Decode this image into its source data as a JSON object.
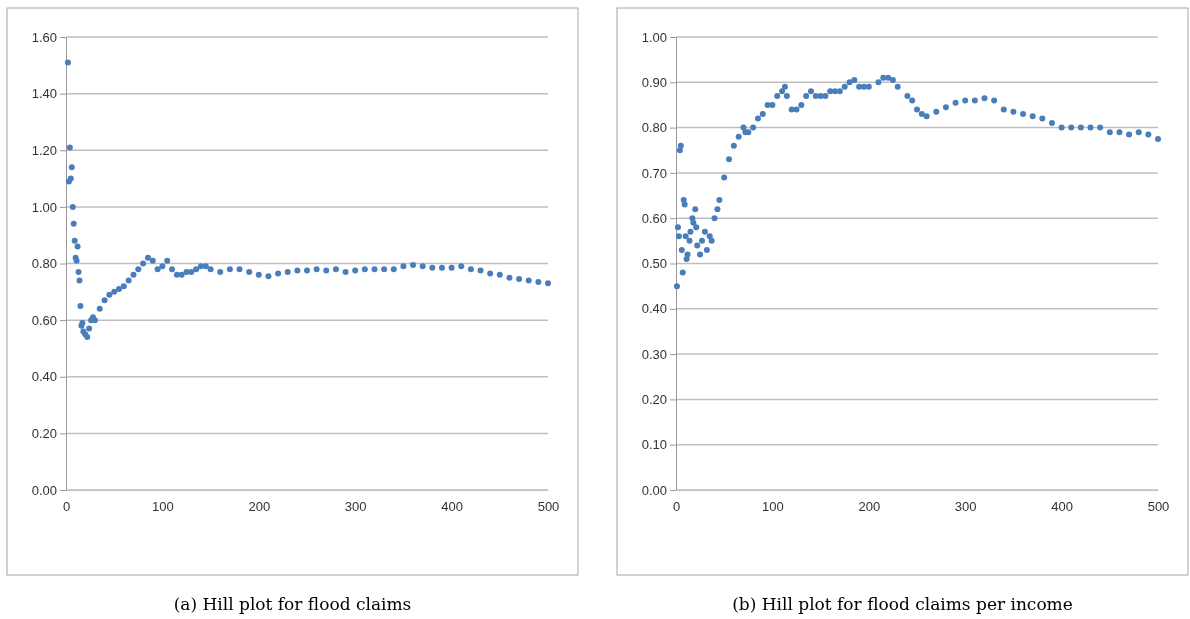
{
  "chart_data": [
    {
      "type": "scatter",
      "title": "(a) Hill plot for flood claims",
      "marker": "circle",
      "grid": "y",
      "xlim": [
        0,
        500
      ],
      "xticks": [
        0,
        100,
        200,
        300,
        400,
        500
      ],
      "ylim": [
        0,
        1.6
      ],
      "yticks": [
        {
          "value": 0,
          "label": "0.00"
        },
        {
          "value": 0.2,
          "label": "0.20"
        },
        {
          "value": 0.4,
          "label": "0.40"
        },
        {
          "value": 0.6,
          "label": "0.60"
        },
        {
          "value": 0.8,
          "label": "0.80"
        },
        {
          "value": 1.0,
          "label": "1.00"
        },
        {
          "value": 1.2,
          "label": "1.20"
        },
        {
          "value": 1.4,
          "label": "1.40"
        },
        {
          "value": 1.6,
          "label": "1.60"
        }
      ],
      "x": [
        2,
        3,
        4,
        5,
        6,
        7,
        8,
        9,
        10,
        11,
        12,
        13,
        14,
        15,
        16,
        17,
        18,
        20,
        22,
        24,
        26,
        28,
        30,
        35,
        40,
        45,
        50,
        55,
        60,
        65,
        70,
        75,
        80,
        85,
        90,
        95,
        100,
        105,
        110,
        115,
        120,
        125,
        130,
        135,
        140,
        145,
        150,
        160,
        170,
        180,
        190,
        200,
        210,
        220,
        230,
        240,
        250,
        260,
        270,
        280,
        290,
        300,
        310,
        320,
        330,
        340,
        350,
        360,
        370,
        380,
        390,
        400,
        410,
        420,
        430,
        440,
        450,
        460,
        470,
        480,
        490,
        500
      ],
      "series": [
        {
          "color": "#4a7ebb",
          "values": [
            1.51,
            1.09,
            1.21,
            1.1,
            1.14,
            1.0,
            0.94,
            0.88,
            0.82,
            0.81,
            0.86,
            0.77,
            0.74,
            0.65,
            0.58,
            0.59,
            0.56,
            0.55,
            0.54,
            0.57,
            0.6,
            0.61,
            0.6,
            0.64,
            0.67,
            0.69,
            0.7,
            0.71,
            0.72,
            0.74,
            0.76,
            0.78,
            0.8,
            0.82,
            0.81,
            0.78,
            0.79,
            0.81,
            0.78,
            0.76,
            0.76,
            0.77,
            0.77,
            0.78,
            0.79,
            0.79,
            0.78,
            0.77,
            0.78,
            0.78,
            0.77,
            0.76,
            0.755,
            0.765,
            0.77,
            0.775,
            0.775,
            0.78,
            0.775,
            0.78,
            0.77,
            0.775,
            0.78,
            0.78,
            0.78,
            0.78,
            0.79,
            0.795,
            0.79,
            0.785,
            0.785,
            0.785,
            0.79,
            0.78,
            0.775,
            0.765,
            0.76,
            0.75,
            0.745,
            0.74,
            0.735,
            0.73
          ]
        }
      ]
    },
    {
      "type": "scatter",
      "title": "(b) Hill plot for flood claims per income",
      "marker": "circle",
      "grid": "y",
      "xlim": [
        0,
        500
      ],
      "xticks": [
        0,
        100,
        200,
        300,
        400,
        500
      ],
      "ylim": [
        0,
        1.0
      ],
      "yticks": [
        {
          "value": 0,
          "label": "0.00"
        },
        {
          "value": 0.1,
          "label": "0.10"
        },
        {
          "value": 0.2,
          "label": "0.20"
        },
        {
          "value": 0.3,
          "label": "0.30"
        },
        {
          "value": 0.4,
          "label": "0.40"
        },
        {
          "value": 0.5,
          "label": "0.50"
        },
        {
          "value": 0.6,
          "label": "0.60"
        },
        {
          "value": 0.7,
          "label": "0.70"
        },
        {
          "value": 0.8,
          "label": "0.80"
        },
        {
          "value": 0.9,
          "label": "0.90"
        },
        {
          "value": 1.0,
          "label": "1.00"
        }
      ],
      "x": [
        1,
        2,
        3,
        4,
        5,
        6,
        7,
        8,
        9,
        10,
        11,
        12,
        14,
        15,
        17,
        18,
        20,
        21,
        22,
        25,
        27,
        30,
        32,
        35,
        37,
        40,
        43,
        45,
        50,
        55,
        60,
        65,
        70,
        72,
        75,
        80,
        85,
        90,
        95,
        100,
        105,
        110,
        113,
        115,
        120,
        125,
        130,
        135,
        140,
        145,
        150,
        155,
        160,
        165,
        170,
        175,
        180,
        185,
        190,
        195,
        200,
        210,
        215,
        220,
        225,
        230,
        240,
        245,
        250,
        255,
        260,
        270,
        280,
        290,
        300,
        310,
        320,
        330,
        340,
        350,
        360,
        370,
        380,
        390,
        400,
        410,
        420,
        430,
        440,
        450,
        460,
        470,
        480,
        490,
        500
      ],
      "series": [
        {
          "color": "#4a7ebb",
          "values": [
            0.45,
            0.58,
            0.56,
            0.75,
            0.76,
            0.53,
            0.48,
            0.64,
            0.63,
            0.56,
            0.51,
            0.52,
            0.55,
            0.57,
            0.6,
            0.59,
            0.62,
            0.58,
            0.54,
            0.52,
            0.55,
            0.57,
            0.53,
            0.56,
            0.55,
            0.6,
            0.62,
            0.64,
            0.69,
            0.73,
            0.76,
            0.78,
            0.8,
            0.79,
            0.79,
            0.8,
            0.82,
            0.83,
            0.85,
            0.85,
            0.87,
            0.88,
            0.89,
            0.87,
            0.84,
            0.84,
            0.85,
            0.87,
            0.88,
            0.87,
            0.87,
            0.87,
            0.88,
            0.88,
            0.88,
            0.89,
            0.9,
            0.905,
            0.89,
            0.89,
            0.89,
            0.9,
            0.91,
            0.91,
            0.905,
            0.89,
            0.87,
            0.86,
            0.84,
            0.83,
            0.825,
            0.835,
            0.845,
            0.855,
            0.86,
            0.86,
            0.865,
            0.86,
            0.84,
            0.835,
            0.83,
            0.825,
            0.82,
            0.81,
            0.8,
            0.8,
            0.8,
            0.8,
            0.8,
            0.79,
            0.79,
            0.785,
            0.79,
            0.785,
            0.775
          ]
        }
      ]
    }
  ]
}
